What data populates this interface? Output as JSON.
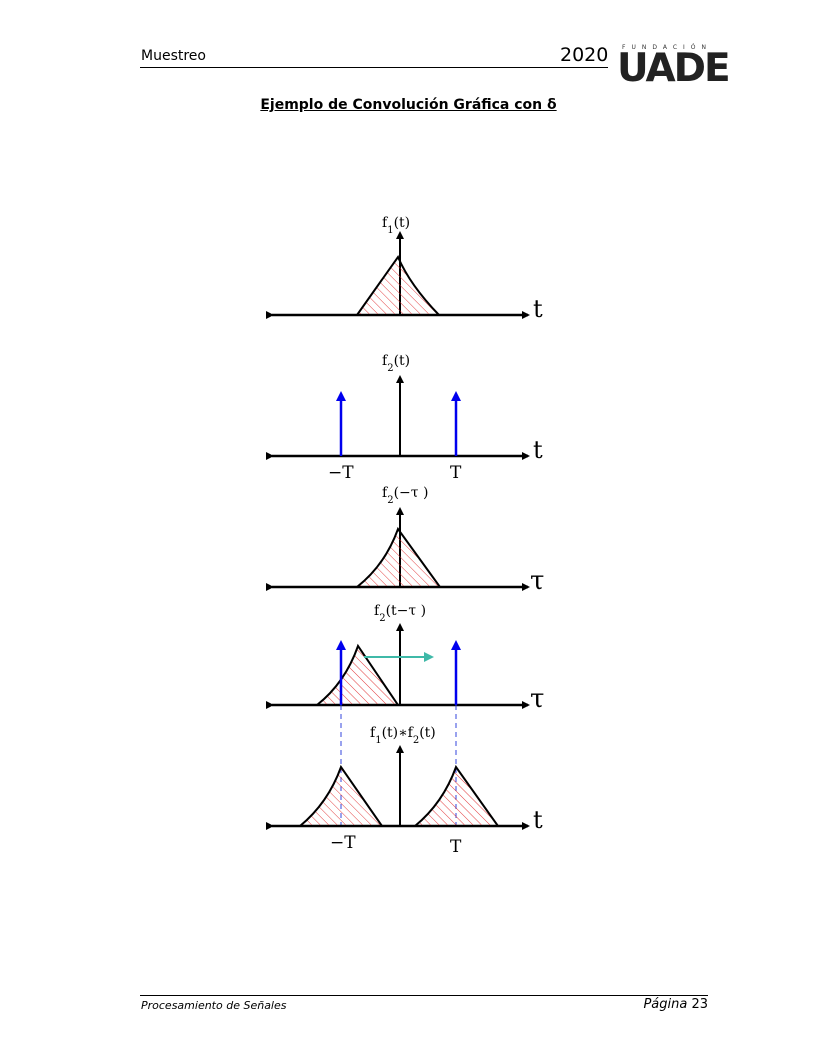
{
  "header": {
    "section": "Muestreo",
    "year": "2020",
    "logo_small": "FUNDACIÓN",
    "logo_big": "UADE"
  },
  "title": "Ejemplo de Convolución Gráfica con δ",
  "figure": {
    "panels": [
      {
        "ylabel_html": "f<tspan baseline-shift='sub' font-size='10'>1</tspan>(t)",
        "axis": "t"
      },
      {
        "ylabel_html": "f<tspan baseline-shift='sub' font-size='10'>2</tspan>(t)",
        "axis": "t",
        "ticks": [
          "−T",
          "T"
        ]
      },
      {
        "ylabel_html": "f<tspan baseline-shift='sub' font-size='10'>2</tspan>(−τ )",
        "axis": "τ"
      },
      {
        "ylabel_html": "f<tspan baseline-shift='sub' font-size='10'>2</tspan>(t−τ )",
        "axis": "τ"
      },
      {
        "ylabel_html": "f<tspan baseline-shift='sub' font-size='10'>1</tspan>(t)∗f<tspan baseline-shift='sub' font-size='10'>2</tspan>(t)",
        "axis": "t",
        "ticks": [
          "−T",
          "T"
        ]
      }
    ],
    "colors": {
      "hatch": "#e0282a",
      "impulse": "#0000ee",
      "shift_arrow": "#3fb9a8",
      "dashed": "#3344dd"
    }
  },
  "footer": {
    "course": "Procesamiento de Señales",
    "page_word": "Página",
    "page_number": "23"
  }
}
